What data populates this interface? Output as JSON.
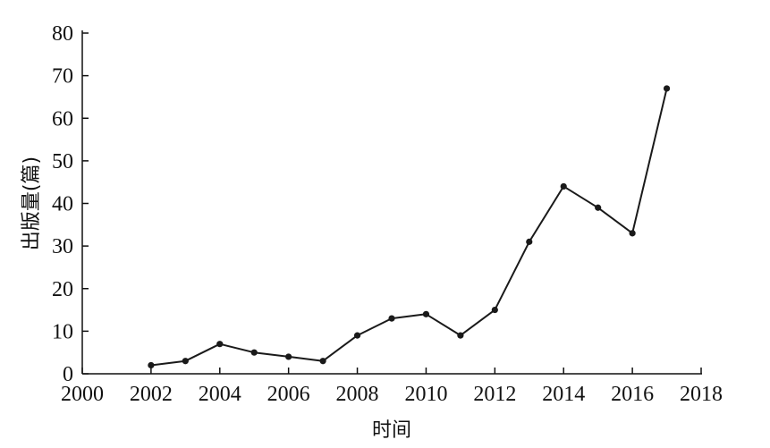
{
  "chart_data": {
    "type": "line",
    "title": "",
    "xlabel": "时间",
    "ylabel": "出版量(篇)",
    "xlim": [
      2000,
      2018
    ],
    "ylim": [
      0,
      80
    ],
    "xticks": [
      2000,
      2002,
      2004,
      2006,
      2008,
      2010,
      2012,
      2014,
      2016,
      2018
    ],
    "yticks": [
      0,
      10,
      20,
      30,
      40,
      50,
      60,
      70,
      80
    ],
    "grid": false,
    "legend": "none",
    "colors": {
      "line": "#1a1a1a",
      "marker": "#1a1a1a",
      "axis": "#111111"
    },
    "series": [
      {
        "x": [
          2002,
          2003,
          2004,
          2005,
          2006,
          2007,
          2008,
          2009,
          2010,
          2011,
          2012,
          2013,
          2014,
          2015,
          2016,
          2017
        ],
        "y": [
          2,
          3,
          7,
          5,
          4,
          3,
          9,
          13,
          14,
          9,
          15,
          31,
          44,
          39,
          33,
          67
        ]
      }
    ]
  }
}
